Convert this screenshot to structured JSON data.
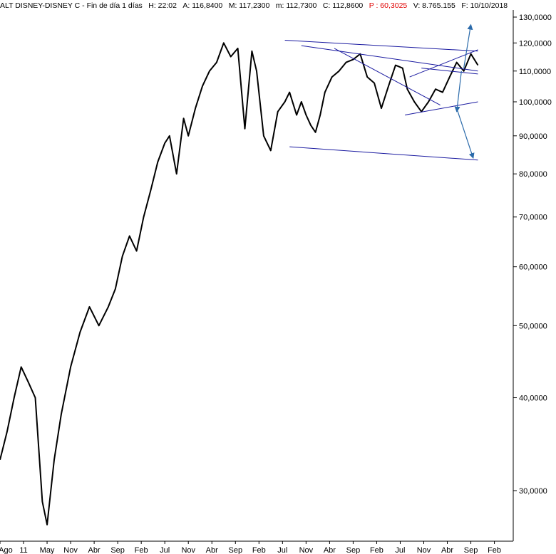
{
  "header": {
    "prefix": "ALT DISNEY-DISNEY C - Fin de día 1 días",
    "h_label": "H: 22:02",
    "a_label": "A: 116,8400",
    "m_label": "M: 117,2300",
    "mm_label": "m: 112,7300",
    "c_label": "C: 112,8600",
    "p_label": "P : 60,3025",
    "v_label": "V: 8.765.155",
    "f_label": "F: 10/10/2018"
  },
  "colors": {
    "price": "#000000",
    "trendline": "#1a1aa0",
    "arrow": "#2a6aaa",
    "header_highlight": "#e00000",
    "axis": "#000000"
  },
  "chart_data": {
    "type": "line",
    "title": "",
    "xlabel": "",
    "ylabel": "",
    "y_scale": "log",
    "ylim": [
      26,
      132
    ],
    "y_ticks": [
      {
        "value": 30,
        "label": "30,0000"
      },
      {
        "value": 40,
        "label": "40,0000"
      },
      {
        "value": 50,
        "label": "50,0000"
      },
      {
        "value": 60,
        "label": "60,0000"
      },
      {
        "value": 70,
        "label": "70,0000"
      },
      {
        "value": 80,
        "label": "80,0000"
      },
      {
        "value": 90,
        "label": "90,0000"
      },
      {
        "value": 100,
        "label": "100,0000"
      },
      {
        "value": 110,
        "label": "110,0000"
      },
      {
        "value": 120,
        "label": "120,0000"
      },
      {
        "value": 130,
        "label": "130,0000"
      }
    ],
    "x_ticks": [
      "Ago",
      "11",
      "May",
      "Nov",
      "Abr",
      "Sep",
      "Feb",
      "Jul",
      "Nov",
      "Abr",
      "Sep",
      "Feb",
      "Jul",
      "Nov",
      "Abr",
      "Sep",
      "Feb",
      "Jul",
      "Nov",
      "Abr",
      "Sep",
      "Feb"
    ],
    "x_domain": [
      0,
      21.8
    ],
    "series": [
      {
        "x": [
          0,
          0.3,
          0.6,
          0.9,
          1.2,
          1.5,
          1.8,
          2.0,
          2.3,
          2.6,
          3.0,
          3.4,
          3.8,
          4.2,
          4.6,
          4.9,
          5.2,
          5.5,
          5.8,
          6.1,
          6.4,
          6.7,
          7.0,
          7.2,
          7.5,
          7.8,
          8.0,
          8.3,
          8.6,
          8.9,
          9.2,
          9.5,
          9.8,
          10.1,
          10.4,
          10.7,
          10.9,
          11.2,
          11.5,
          11.8,
          12.1,
          12.3,
          12.6,
          12.8,
          13.0,
          13.2,
          13.4,
          13.6,
          13.8,
          14.1,
          14.4,
          14.7,
          15.0,
          15.3,
          15.6,
          15.9,
          16.2,
          16.5,
          16.8,
          17.1,
          17.3,
          17.6,
          17.9,
          18.2,
          18.5,
          18.8,
          19.1,
          19.4,
          19.7,
          20.0,
          20.3
        ],
        "y": [
          33,
          36,
          40,
          44,
          42,
          40,
          29,
          27,
          33,
          38,
          44,
          49,
          53,
          50,
          53,
          56,
          62,
          66,
          63,
          70,
          76,
          83,
          88,
          90,
          80,
          95,
          90,
          98,
          105,
          110,
          113,
          120,
          115,
          118,
          92,
          117,
          110,
          90,
          86,
          97,
          100,
          103,
          96,
          100,
          96,
          93,
          91,
          96,
          103,
          108,
          110,
          113,
          114,
          116,
          108,
          106,
          98,
          105,
          112,
          111,
          104,
          100,
          97,
          100,
          104,
          103,
          108,
          113,
          110,
          116,
          112
        ]
      }
    ],
    "trendlines": [
      {
        "from": [
          12.1,
          121
        ],
        "to": [
          20.3,
          117
        ]
      },
      {
        "from": [
          12.8,
          119
        ],
        "to": [
          20.3,
          110
        ]
      },
      {
        "from": [
          14.2,
          118
        ],
        "to": [
          18.7,
          99
        ]
      },
      {
        "from": [
          12.3,
          87
        ],
        "to": [
          20.3,
          83.5
        ]
      },
      {
        "from": [
          17.2,
          96
        ],
        "to": [
          20.3,
          100
        ]
      },
      {
        "from": [
          17.4,
          108
        ],
        "to": [
          20.3,
          117.5
        ]
      },
      {
        "from": [
          17.9,
          111
        ],
        "to": [
          20.3,
          109
        ]
      }
    ],
    "arrows": [
      {
        "from": [
          19.7,
          111
        ],
        "to": [
          20.0,
          127
        ]
      },
      {
        "from": [
          19.6,
          110
        ],
        "to": [
          19.4,
          97
        ]
      },
      {
        "from": [
          19.4,
          98
        ],
        "to": [
          20.1,
          84
        ]
      }
    ]
  }
}
